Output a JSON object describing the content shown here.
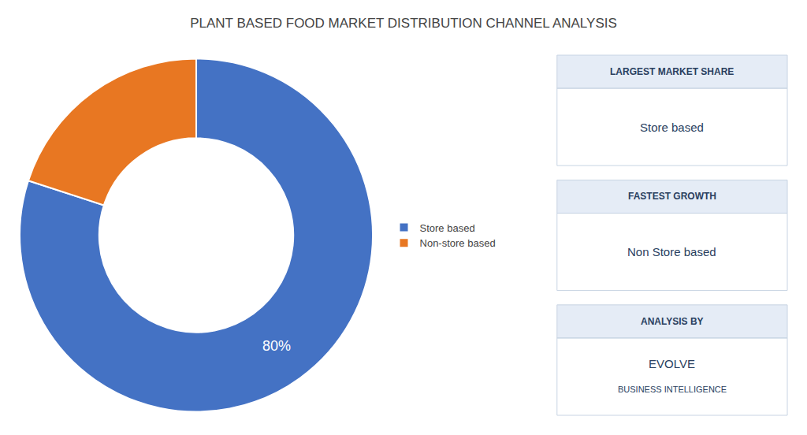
{
  "chart_data": {
    "type": "pie",
    "title": "PLANT BASED FOOD MARKET DISTRIBUTION CHANNEL ANALYSIS",
    "categories": [
      "Store based",
      "Non-store based"
    ],
    "values": [
      80,
      20
    ],
    "value_labels": [
      "80%",
      null
    ],
    "colors": [
      "#4472C4",
      "#E87722"
    ],
    "legend": "right",
    "annotations": [
      {
        "header": "LARGEST MARKET SHARE",
        "text": [
          "Store based"
        ]
      },
      {
        "header": "FASTEST GROWTH",
        "text": [
          "Non Store based"
        ]
      },
      {
        "header": "ANALYSIS BY",
        "text": [
          "EVOLVE",
          "BUSINESS INTELLIGENCE"
        ]
      }
    ]
  }
}
